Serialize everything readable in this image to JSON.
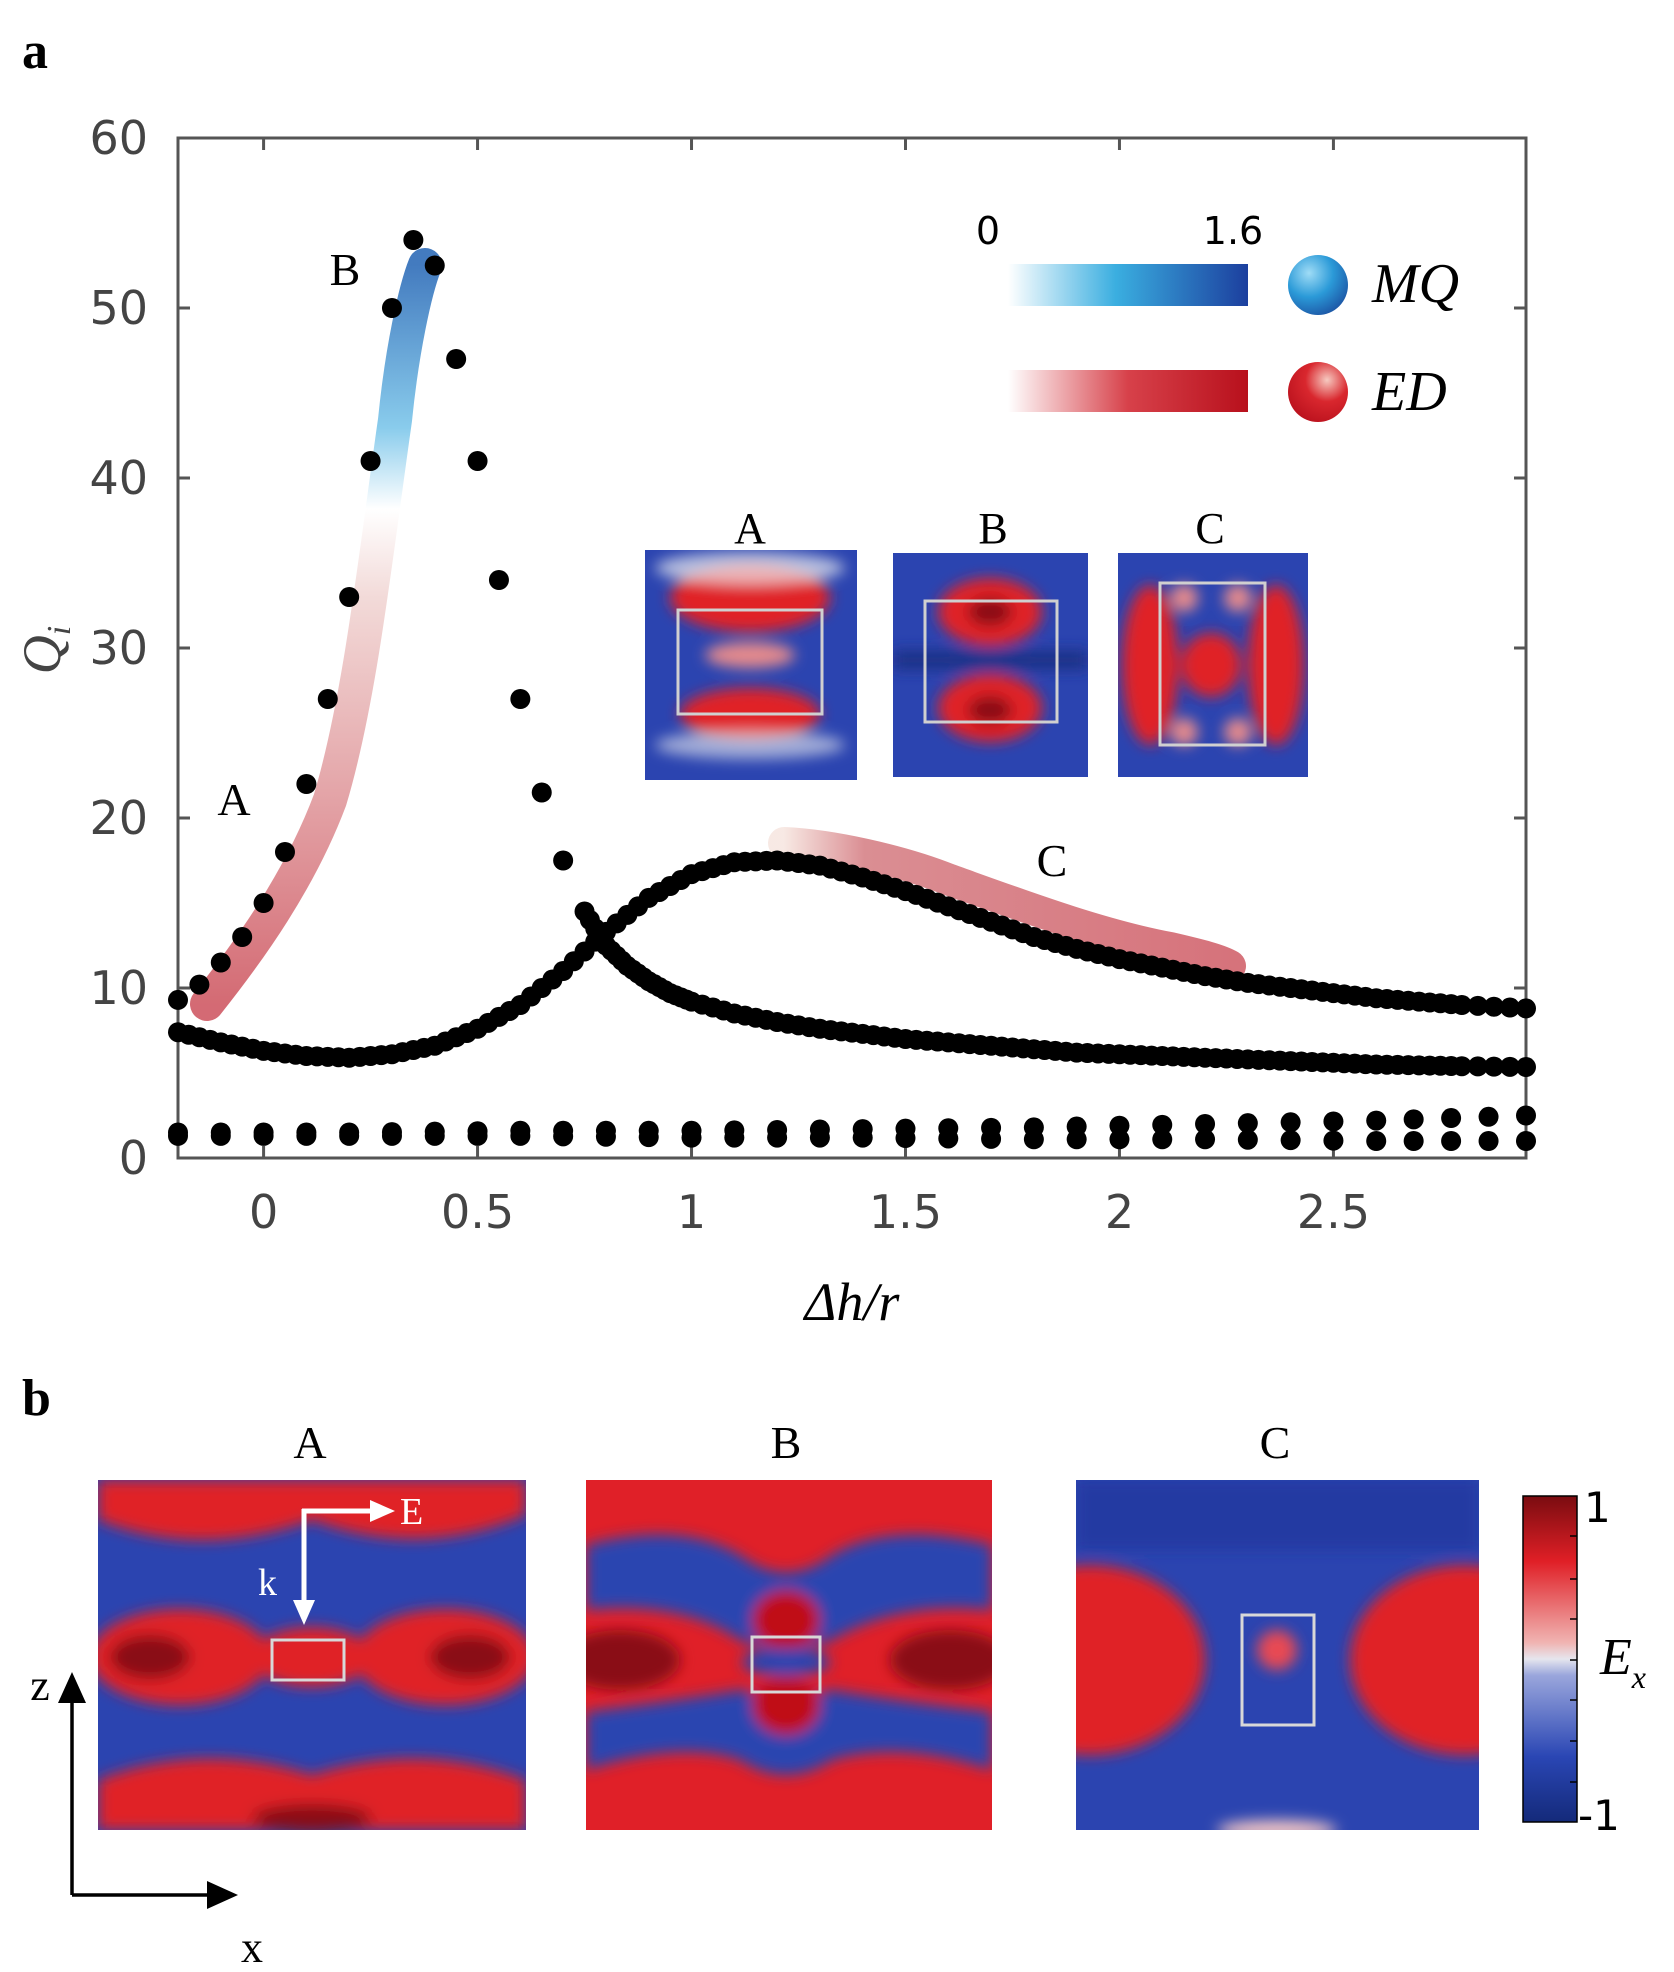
{
  "panel_a": {
    "label": "a",
    "curve_labels": {
      "A": "A",
      "B": "B",
      "C": "C"
    },
    "colorbars": {
      "min": "0",
      "max": "1.6",
      "mq": "MQ",
      "ed": "ED",
      "mq_color": "#1a8fd6",
      "ed_color": "#c8141c"
    },
    "insets": [
      "A",
      "B",
      "C"
    ]
  },
  "panel_b": {
    "label": "b",
    "titles": [
      "A",
      "B",
      "C"
    ],
    "arrow_E": "E",
    "arrow_k": "k",
    "axis_z": "z",
    "axis_x": "x",
    "colorbar": {
      "max": "1",
      "min": "-1",
      "label_main": "E",
      "label_sub": "x",
      "pos_color": "#e01f26",
      "neg_color": "#1f3aa6"
    }
  },
  "chart_data": {
    "type": "scatter",
    "xlabel": "Δh/r",
    "ylabel": "Q_i",
    "xlim": [
      -0.2,
      2.95
    ],
    "ylim": [
      0,
      60
    ],
    "xticks": [
      "0",
      "0.5",
      "1",
      "1.5",
      "2",
      "2.5"
    ],
    "yticks": [
      "0",
      "10",
      "20",
      "30",
      "40",
      "50",
      "60"
    ],
    "grid": false,
    "series": [
      {
        "x": [
          -0.2,
          -0.15,
          -0.1,
          -0.05,
          0,
          0.05,
          0.1,
          0.15,
          0.2,
          0.25,
          0.3,
          0.35,
          0.4,
          0.45,
          0.5,
          0.55,
          0.6,
          0.65,
          0.7,
          0.75,
          0.8,
          0.85,
          0.9,
          0.95,
          1.0,
          1.1,
          1.2,
          1.3,
          1.4,
          1.5,
          1.6,
          1.7,
          1.8,
          1.9,
          2.0,
          2.1,
          2.2,
          2.3,
          2.4,
          2.5,
          2.6,
          2.7,
          2.8,
          2.95
        ],
        "y": [
          9.3,
          10.2,
          11.5,
          13,
          15,
          18,
          22,
          27,
          33,
          41,
          50,
          54,
          52.5,
          47,
          41,
          34,
          27,
          21.5,
          17.5,
          14.5,
          12.5,
          11.3,
          10.4,
          9.7,
          9.2,
          8.5,
          8.0,
          7.6,
          7.3,
          7.0,
          6.8,
          6.6,
          6.4,
          6.2,
          6.1,
          6.0,
          5.9,
          5.8,
          5.7,
          5.6,
          5.5,
          5.45,
          5.4,
          5.35
        ]
      },
      {
        "x": [
          -0.2,
          -0.1,
          0,
          0.1,
          0.2,
          0.3,
          0.4,
          0.5,
          0.6,
          0.7,
          0.8,
          0.9,
          1.0,
          1.1,
          1.2,
          1.3,
          1.4,
          1.5,
          1.6,
          1.7,
          1.8,
          1.9,
          2.0,
          2.1,
          2.2,
          2.3,
          2.4,
          2.5,
          2.6,
          2.7,
          2.8,
          2.95
        ],
        "y": [
          7.4,
          6.8,
          6.3,
          6.0,
          5.9,
          6.1,
          6.6,
          7.6,
          9.0,
          11.0,
          13.3,
          15.3,
          16.7,
          17.4,
          17.5,
          17.2,
          16.5,
          15.7,
          14.8,
          13.9,
          13.0,
          12.3,
          11.7,
          11.2,
          10.7,
          10.3,
          10.0,
          9.7,
          9.4,
          9.2,
          9.0,
          8.8
        ]
      },
      {
        "x": [
          -0.2,
          0.2,
          0.6,
          1.0,
          1.4,
          1.8,
          2.2,
          2.6,
          2.95
        ],
        "y": [
          1.5,
          1.5,
          1.6,
          1.6,
          1.7,
          1.8,
          2.0,
          2.2,
          2.5
        ]
      },
      {
        "x": [
          -0.2,
          0.2,
          0.6,
          1.0,
          1.4,
          1.8,
          2.2,
          2.6,
          2.95
        ],
        "y": [
          1.3,
          1.3,
          1.3,
          1.2,
          1.2,
          1.1,
          1.1,
          1.0,
          1.0
        ]
      }
    ]
  }
}
